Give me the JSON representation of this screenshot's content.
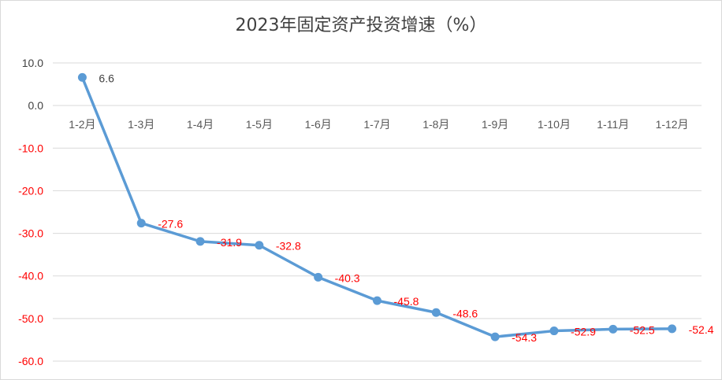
{
  "chart_data": {
    "type": "line",
    "title": "2023年固定资产投资增速（%）",
    "xlabel": "",
    "ylabel": "",
    "categories": [
      "1-2月",
      "1-3月",
      "1-4月",
      "1-5月",
      "1-6月",
      "1-7月",
      "1-8月",
      "1-9月",
      "1-10月",
      "1-11月",
      "1-12月"
    ],
    "values": [
      6.6,
      -27.6,
      -31.9,
      -32.8,
      -40.3,
      -45.8,
      -48.6,
      -54.3,
      -52.9,
      -52.5,
      -52.4
    ],
    "data_labels": [
      "6.6",
      "-27.6",
      "-31.9",
      "-32.8",
      "-40.3",
      "-45.8",
      "-48.6",
      "-54.3",
      "-52.9",
      "-52.5",
      "-52.4"
    ],
    "ylim": [
      -60,
      10
    ],
    "y_ticks": [
      10,
      0,
      -10,
      -20,
      -30,
      -40,
      -50,
      -60
    ],
    "y_tick_labels": [
      "10.0",
      "0.0",
      "-10.0",
      "-20.0",
      "-30.0",
      "-40.0",
      "-50.0",
      "-60.0"
    ],
    "grid": true,
    "legend": "none",
    "colors": {
      "line": "#5b9bd5",
      "positive_label": "#404040",
      "negative_label": "#ff0000",
      "grid": "#d9d9d9",
      "category_label": "#595959"
    }
  }
}
